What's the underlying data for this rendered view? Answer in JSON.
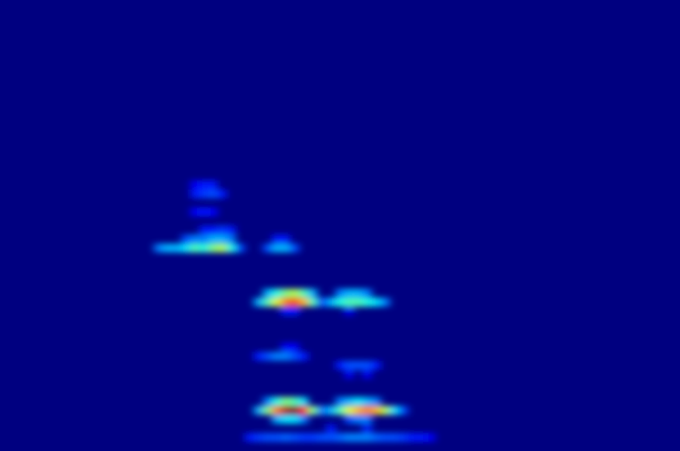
{
  "chart_data": {
    "type": "heatmap",
    "xlim": [
      0,
      75
    ],
    "ylim": [
      0,
      50
    ],
    "zlim": [
      0,
      1
    ],
    "tick_labels": false,
    "cells": [
      [
        28,
        4,
        0.3
      ],
      [
        29,
        4,
        0.5
      ],
      [
        30,
        4,
        0.75
      ],
      [
        31,
        4,
        0.95
      ],
      [
        32,
        4,
        1.0
      ],
      [
        33,
        4,
        0.85
      ],
      [
        34,
        4,
        0.5
      ],
      [
        35,
        4,
        0.25
      ],
      [
        36,
        4,
        0.3
      ],
      [
        37,
        4,
        0.45
      ],
      [
        38,
        4,
        0.6
      ],
      [
        39,
        4,
        0.7
      ],
      [
        40,
        4,
        0.75
      ],
      [
        41,
        4,
        0.7
      ],
      [
        42,
        4,
        0.55
      ],
      [
        43,
        4,
        0.35
      ],
      [
        44,
        4,
        0.2
      ],
      [
        29,
        5,
        0.25
      ],
      [
        30,
        5,
        0.4
      ],
      [
        31,
        5,
        0.5
      ],
      [
        32,
        5,
        0.45
      ],
      [
        33,
        5,
        0.35
      ],
      [
        37,
        5,
        0.25
      ],
      [
        38,
        5,
        0.3
      ],
      [
        39,
        5,
        0.35
      ],
      [
        40,
        5,
        0.3
      ],
      [
        41,
        5,
        0.25
      ],
      [
        30,
        3,
        0.3
      ],
      [
        31,
        3,
        0.35
      ],
      [
        32,
        3,
        0.35
      ],
      [
        33,
        3,
        0.25
      ],
      [
        38,
        3,
        0.2
      ],
      [
        39,
        3,
        0.25
      ],
      [
        40,
        3,
        0.25
      ],
      [
        36,
        2,
        0.15
      ],
      [
        40,
        2,
        0.15
      ],
      [
        27,
        1,
        0.15
      ],
      [
        28,
        1,
        0.18
      ],
      [
        29,
        1,
        0.2
      ],
      [
        30,
        1,
        0.2
      ],
      [
        31,
        1,
        0.22
      ],
      [
        32,
        1,
        0.2
      ],
      [
        33,
        1,
        0.18
      ],
      [
        34,
        1,
        0.18
      ],
      [
        35,
        1,
        0.2
      ],
      [
        36,
        1,
        0.2
      ],
      [
        37,
        1,
        0.22
      ],
      [
        38,
        1,
        0.25
      ],
      [
        39,
        1,
        0.25
      ],
      [
        40,
        1,
        0.25
      ],
      [
        41,
        1,
        0.22
      ],
      [
        42,
        1,
        0.2
      ],
      [
        43,
        1,
        0.2
      ],
      [
        44,
        1,
        0.18
      ],
      [
        45,
        1,
        0.15
      ],
      [
        46,
        1,
        0.15
      ],
      [
        47,
        1,
        0.12
      ],
      [
        28,
        10,
        0.15
      ],
      [
        29,
        10,
        0.2
      ],
      [
        30,
        10,
        0.25
      ],
      [
        31,
        10,
        0.25
      ],
      [
        32,
        10,
        0.2
      ],
      [
        33,
        10,
        0.15
      ],
      [
        37,
        9,
        0.15
      ],
      [
        38,
        9,
        0.2
      ],
      [
        39,
        9,
        0.2
      ],
      [
        40,
        9,
        0.2
      ],
      [
        41,
        9,
        0.15
      ],
      [
        38,
        8,
        0.12
      ],
      [
        40,
        8,
        0.12
      ],
      [
        31,
        11,
        0.12
      ],
      [
        32,
        11,
        0.12
      ],
      [
        28,
        16,
        0.3
      ],
      [
        29,
        16,
        0.45
      ],
      [
        30,
        16,
        0.6
      ],
      [
        31,
        16,
        0.75
      ],
      [
        32,
        16,
        0.8
      ],
      [
        33,
        16,
        0.7
      ],
      [
        34,
        16,
        0.45
      ],
      [
        35,
        16,
        0.2
      ],
      [
        36,
        16,
        0.3
      ],
      [
        37,
        16,
        0.4
      ],
      [
        38,
        16,
        0.45
      ],
      [
        39,
        16,
        0.45
      ],
      [
        40,
        16,
        0.4
      ],
      [
        41,
        16,
        0.35
      ],
      [
        42,
        16,
        0.25
      ],
      [
        29,
        17,
        0.3
      ],
      [
        30,
        17,
        0.4
      ],
      [
        31,
        17,
        0.5
      ],
      [
        32,
        17,
        0.55
      ],
      [
        33,
        17,
        0.45
      ],
      [
        34,
        17,
        0.3
      ],
      [
        37,
        17,
        0.25
      ],
      [
        38,
        17,
        0.3
      ],
      [
        39,
        17,
        0.3
      ],
      [
        40,
        17,
        0.25
      ],
      [
        31,
        15,
        0.15
      ],
      [
        32,
        15,
        0.15
      ],
      [
        38,
        15,
        0.12
      ],
      [
        17,
        22,
        0.25
      ],
      [
        18,
        22,
        0.3
      ],
      [
        19,
        22,
        0.3
      ],
      [
        20,
        22,
        0.35
      ],
      [
        21,
        22,
        0.45
      ],
      [
        22,
        22,
        0.4
      ],
      [
        23,
        22,
        0.5
      ],
      [
        24,
        22,
        0.55
      ],
      [
        25,
        22,
        0.4
      ],
      [
        26,
        22,
        0.2
      ],
      [
        29,
        22,
        0.2
      ],
      [
        30,
        22,
        0.3
      ],
      [
        31,
        22,
        0.3
      ],
      [
        32,
        22,
        0.2
      ],
      [
        20,
        23,
        0.2
      ],
      [
        21,
        23,
        0.25
      ],
      [
        22,
        23,
        0.25
      ],
      [
        23,
        23,
        0.3
      ],
      [
        24,
        23,
        0.3
      ],
      [
        25,
        23,
        0.25
      ],
      [
        30,
        23,
        0.15
      ],
      [
        31,
        23,
        0.15
      ],
      [
        22,
        24,
        0.15
      ],
      [
        23,
        24,
        0.15
      ],
      [
        24,
        24,
        0.18
      ],
      [
        25,
        24,
        0.15
      ],
      [
        21,
        26,
        0.12
      ],
      [
        22,
        26,
        0.15
      ],
      [
        23,
        26,
        0.12
      ],
      [
        21,
        28,
        0.15
      ],
      [
        22,
        28,
        0.18
      ],
      [
        23,
        28,
        0.2
      ],
      [
        24,
        28,
        0.15
      ],
      [
        21,
        29,
        0.12
      ],
      [
        22,
        29,
        0.15
      ],
      [
        23,
        29,
        0.15
      ]
    ]
  }
}
